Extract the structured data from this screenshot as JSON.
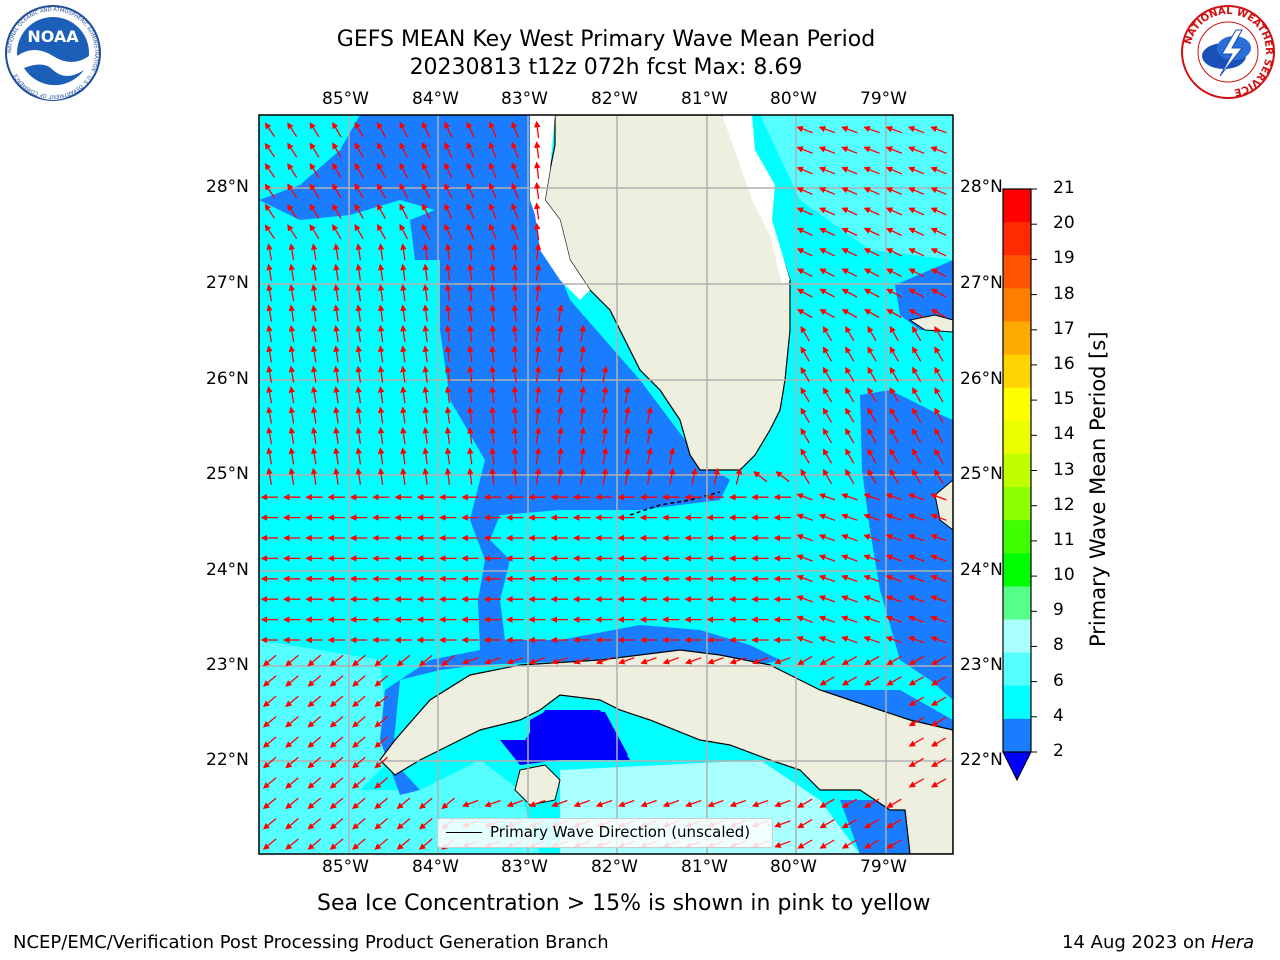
{
  "title": {
    "line1": "GEFS MEAN Key West Primary Wave Mean Period",
    "line2": "20230813 t12z 072h fcst   Max: 8.69"
  },
  "map": {
    "lon_labels": [
      "85°W",
      "84°W",
      "83°W",
      "82°W",
      "81°W",
      "80°W",
      "79°W"
    ],
    "lat_labels": [
      "28°N",
      "27°N",
      "26°N",
      "25°N",
      "24°N",
      "23°N",
      "22°N"
    ],
    "land_color": "#efefdf",
    "grid_color": "#b0b0b0",
    "arrow_color": "#ff0000"
  },
  "legend": {
    "label": "Primary Wave Direction (unscaled)"
  },
  "colorbar": {
    "label": "Primary Wave Mean Period [s]",
    "ticks": [
      "21",
      "20",
      "19",
      "18",
      "17",
      "16",
      "15",
      "14",
      "13",
      "12",
      "11",
      "10",
      "9",
      "8",
      "6",
      "4",
      "2"
    ],
    "colors_top_to_bottom": [
      "#ff0000",
      "#ff2a00",
      "#ff5500",
      "#ff8000",
      "#ffaa00",
      "#ffd400",
      "#ffff00",
      "#eaff00",
      "#c0ff00",
      "#8cff00",
      "#40ff00",
      "#00ff00",
      "#55ff88",
      "#aaffff",
      "#55ffff",
      "#00ffff",
      "#1a7cff"
    ],
    "under_color": "#0000ff"
  },
  "caption": "Sea Ice Concentration > 15% is shown in pink to yellow",
  "footer": {
    "left": "NCEP/EMC/Verification Post Processing Product Generation Branch",
    "right_date": "14 Aug 2023 on ",
    "right_host": "Hera"
  },
  "logos": {
    "left_text": "NOAA",
    "left_ring": "NATIONAL OCEANIC AND ATMOSPHERIC ADMINISTRATION · U.S. DEPARTMENT OF COMMERCE",
    "right_ring": "NATIONAL WEATHER SERVICE"
  }
}
